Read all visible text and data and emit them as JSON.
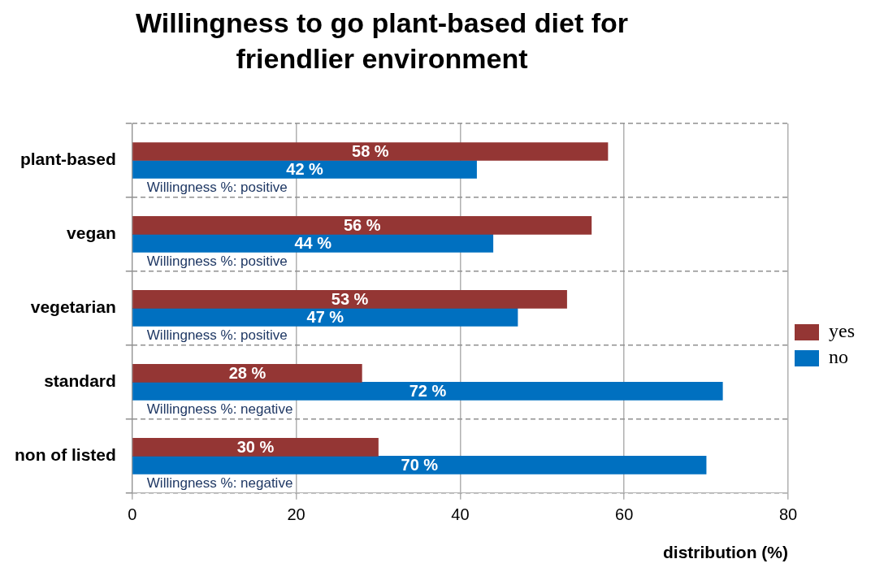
{
  "chart_data": {
    "type": "bar",
    "orientation": "horizontal",
    "title": "Willingness to go plant-based diet for friendlier environment",
    "xlabel": "distribution (%)",
    "categories": [
      "plant-based",
      "vegan",
      "vegetarian",
      "standard",
      "non of listed"
    ],
    "series": [
      {
        "name": "yes",
        "color": "#943634",
        "values": [
          58,
          56,
          53,
          28,
          30
        ],
        "value_labels": [
          "58 %",
          "56 %",
          "53 %",
          "28 %",
          "30 %"
        ]
      },
      {
        "name": "no",
        "color": "#0070c0",
        "values": [
          42,
          44,
          47,
          72,
          70
        ],
        "value_labels": [
          "42 %",
          "44 %",
          "47 %",
          "72 %",
          "70 %"
        ]
      }
    ],
    "xlim": [
      0,
      80
    ],
    "xticks": [
      0,
      20,
      40,
      60,
      80
    ],
    "grid": true,
    "legend": "right",
    "annotations": [
      {
        "text": "Willingness %: positive",
        "y": "plant-based"
      },
      {
        "text": "Willingness %: positive",
        "y": "vegan"
      },
      {
        "text": "Willingness %: positive",
        "y": "vegetarian"
      },
      {
        "text": "Willingness %: negative",
        "y": "standard"
      },
      {
        "text": "Willingness %: negative",
        "y": "non of listed"
      }
    ]
  }
}
